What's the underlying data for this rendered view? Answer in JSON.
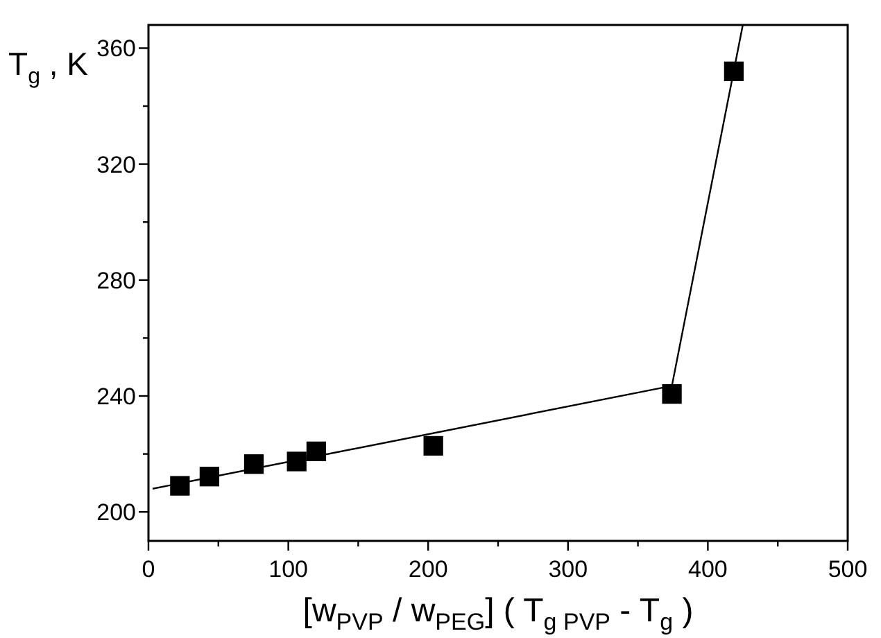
{
  "chart_data": {
    "type": "scatter",
    "xlabel": "[w$_{PVP}$ / w$_{PEG}$] ( T$_{g PVP}$ - T$_{g}$ )",
    "ylabel": "T$_{g}$ , K",
    "x": [
      22.5,
      43.6,
      75.4,
      106,
      120,
      203.7,
      374.3,
      418.6
    ],
    "series": [
      {
        "type": "scatter",
        "color": "#000000",
        "marker": "square",
        "values": [
          209,
          212.2,
          216.5,
          217.4,
          220.9,
          222.8,
          240.7,
          352
        ]
      },
      {
        "type": "line",
        "color": "#000000",
        "marker": "none",
        "line_style": "solid",
        "x": [
          3,
          374.3
        ],
        "values": [
          208,
          243.5
        ]
      },
      {
        "type": "line",
        "color": "#000000",
        "marker": "none",
        "line_style": "solid",
        "x": [
          374.3,
          425
        ],
        "values": [
          243.5,
          368
        ]
      }
    ],
    "xlim": [
      0,
      500
    ],
    "ylim": [
      190,
      368
    ],
    "xticks": [
      0,
      {
        "value": 50,
        "label": null
      },
      100,
      {
        "value": 150,
        "label": null
      },
      200,
      {
        "value": 250,
        "label": null
      },
      300,
      {
        "value": 350,
        "label": null
      },
      400,
      {
        "value": 450,
        "label": null
      },
      500
    ],
    "yticks": [
      200,
      {
        "value": 220,
        "label": null
      },
      240,
      {
        "value": 260,
        "label": null
      },
      280,
      {
        "value": 300,
        "label": null
      },
      320,
      {
        "value": 340,
        "label": null
      },
      360
    ],
    "grid": false
  }
}
